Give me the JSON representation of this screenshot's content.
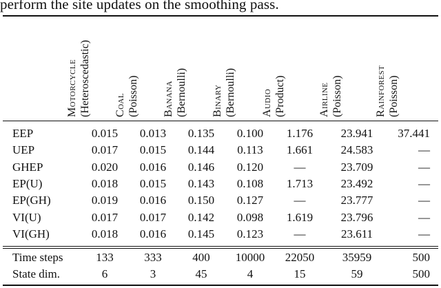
{
  "caption": "perform the site updates on the smoothing pass.",
  "columns": [
    {
      "name": "Motorcycle",
      "note": "(Heteroscedastic)"
    },
    {
      "name": "Coal",
      "note": "(Poisson)"
    },
    {
      "name": "Banana",
      "note": "(Bernoulli)"
    },
    {
      "name": "Binary",
      "note": "(Bernoulli)"
    },
    {
      "name": "Audio",
      "note": "(Product)"
    },
    {
      "name": "Airline",
      "note": "(Poisson)"
    },
    {
      "name": "Rainforest",
      "note": "(Poisson)"
    }
  ],
  "method_rows": [
    {
      "label": "EEP",
      "values": [
        "0.015",
        "0.013",
        "0.135",
        "0.100",
        "1.176",
        "23.941",
        "37.441"
      ]
    },
    {
      "label": "UEP",
      "values": [
        "0.017",
        "0.015",
        "0.144",
        "0.113",
        "1.661",
        "24.583",
        "—"
      ]
    },
    {
      "label": "GHEP",
      "values": [
        "0.020",
        "0.016",
        "0.146",
        "0.120",
        "—",
        "23.709",
        "—"
      ]
    },
    {
      "label": "EP(U)",
      "values": [
        "0.018",
        "0.015",
        "0.143",
        "0.108",
        "1.713",
        "23.492",
        "—"
      ]
    },
    {
      "label": "EP(GH)",
      "values": [
        "0.019",
        "0.016",
        "0.150",
        "0.127",
        "—",
        "23.777",
        "—"
      ]
    },
    {
      "label": "VI(U)",
      "values": [
        "0.017",
        "0.017",
        "0.142",
        "0.098",
        "1.619",
        "23.796",
        "—"
      ]
    },
    {
      "label": "VI(GH)",
      "values": [
        "0.018",
        "0.016",
        "0.145",
        "0.123",
        "—",
        "23.611",
        "—"
      ]
    }
  ],
  "info_rows": [
    {
      "label": "Time steps",
      "values": [
        "133",
        "333",
        "400",
        "10000",
        "22050",
        "35959",
        "500"
      ]
    },
    {
      "label": "State dim.",
      "values": [
        "6",
        "3",
        "45",
        "4",
        "15",
        "59",
        "500"
      ]
    }
  ]
}
